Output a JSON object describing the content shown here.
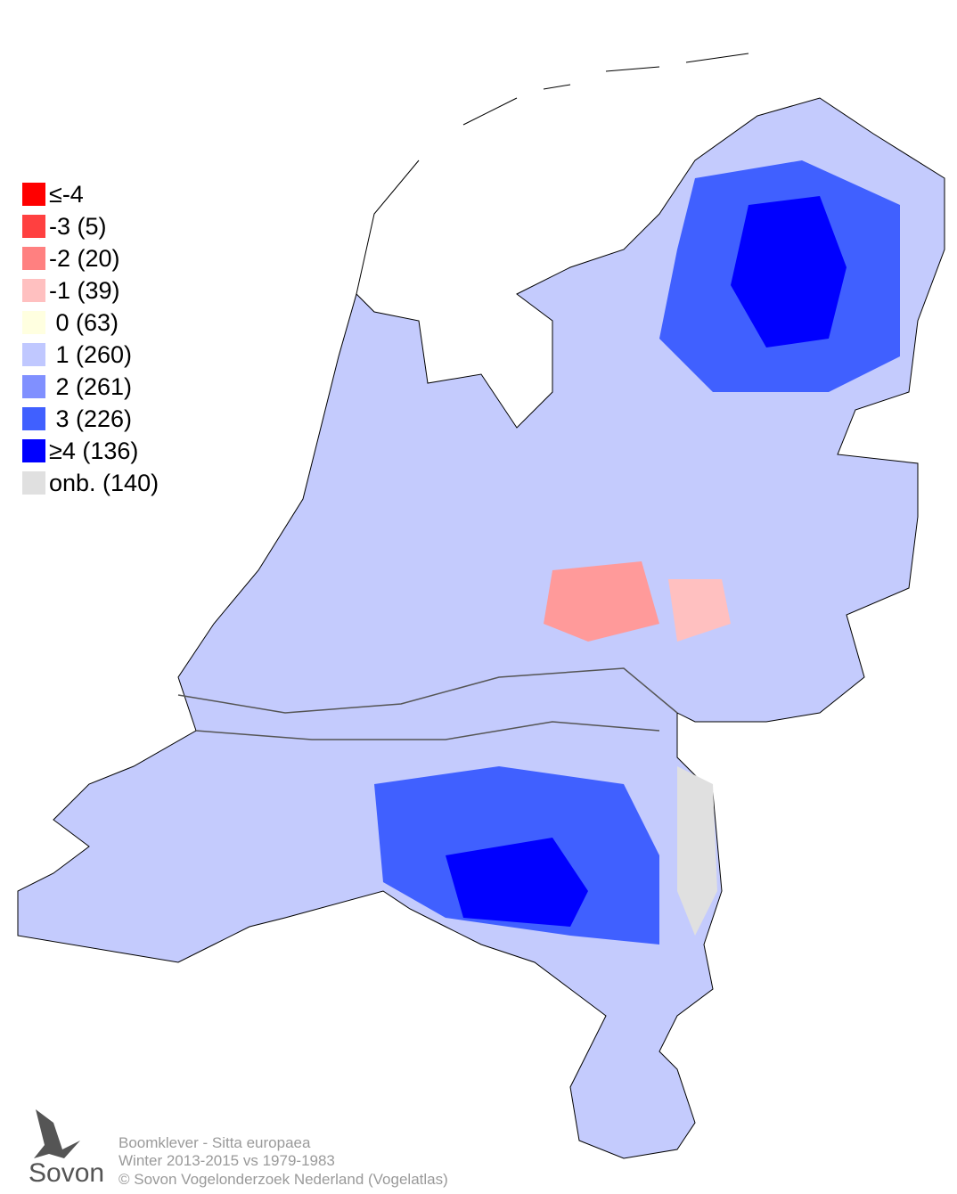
{
  "legend": [
    {
      "label": "≤-4",
      "color": "#ff0000"
    },
    {
      "label": "-3 (5)",
      "color": "#ff4040"
    },
    {
      "label": "-2 (20)",
      "color": "#ff8080"
    },
    {
      "label": "-1 (39)",
      "color": "#ffc0c0"
    },
    {
      "label": " 0 (63)",
      "color": "#ffffe0"
    },
    {
      "label": " 1 (260)",
      "color": "#c0c8ff"
    },
    {
      "label": " 2 (261)",
      "color": "#8090ff"
    },
    {
      "label": " 3 (226)",
      "color": "#4060ff"
    },
    {
      "label": "≥4 (136)",
      "color": "#0000ff"
    },
    {
      "label": "onb. (140)",
      "color": "#e0e0e0"
    }
  ],
  "caption": [
    "Boomklever - Sitta europaea",
    "Winter 2013-2015 vs 1979-1983",
    "© Sovon Vogelonderzoek Nederland (Vogelatlas)"
  ],
  "logo": "Sovon"
}
